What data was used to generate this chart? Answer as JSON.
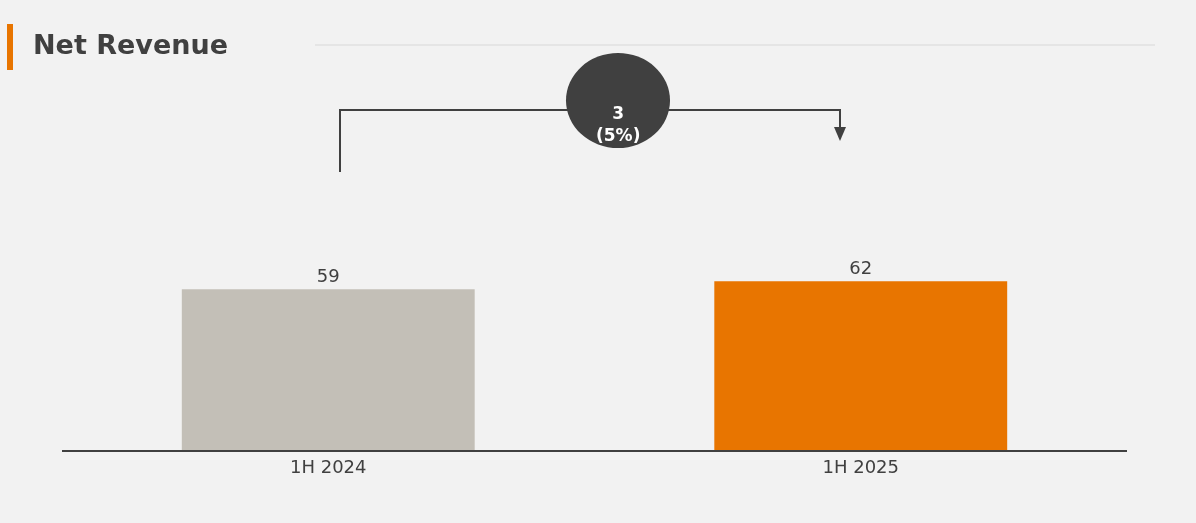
{
  "chart_data": {
    "type": "bar",
    "title": "Net Revenue",
    "categories": [
      "1H 2024",
      "1H 2025"
    ],
    "values": [
      59,
      62
    ],
    "colors": [
      "#c3bfb7",
      "#e87500"
    ],
    "data_labels": true,
    "annotations": [
      "3\n(5%)"
    ]
  }
}
